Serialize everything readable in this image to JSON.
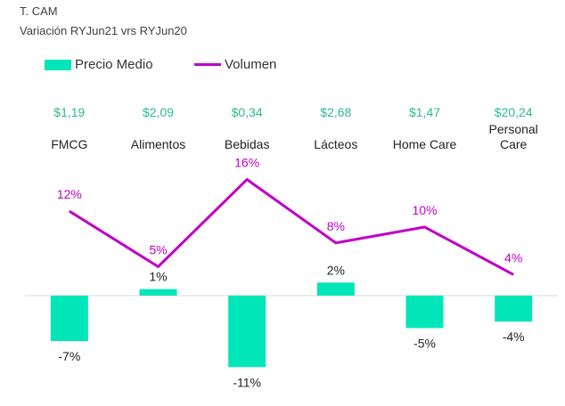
{
  "header": {
    "title": "T. CAM",
    "subtitle": "Variación RYJun21 vrs RYJun20"
  },
  "colors": {
    "bar": "#00E6B8",
    "line": "#C000C8",
    "price_text": "#2DB894",
    "axis": "#D9D9D9"
  },
  "chart_data": {
    "type": "bar",
    "combo": "bar+line",
    "categories": [
      [
        "FMCG"
      ],
      [
        "Alimentos"
      ],
      [
        "Bebidas"
      ],
      [
        "Lácteos"
      ],
      [
        "Home Care"
      ],
      [
        "Personal",
        "Care"
      ]
    ],
    "price_labels": [
      "$1,19",
      "$2,09",
      "$0,34",
      "$2,68",
      "$1,47",
      "$20,24"
    ],
    "legend": [
      "Precio Medio",
      "Volumen"
    ],
    "legend_position": "top-left",
    "grid": false,
    "series": [
      {
        "name": "Precio Medio",
        "type": "bar",
        "values": [
          -7,
          1,
          -11,
          2,
          -5,
          -4
        ],
        "labels": [
          "-7%",
          "1%",
          "-11%",
          "2%",
          "-5%",
          "-4%"
        ]
      },
      {
        "name": "Volumen",
        "type": "line",
        "values": [
          12,
          5,
          16,
          8,
          10,
          4
        ],
        "labels": [
          "12%",
          "5%",
          "16%",
          "8%",
          "10%",
          "4%"
        ]
      }
    ]
  }
}
